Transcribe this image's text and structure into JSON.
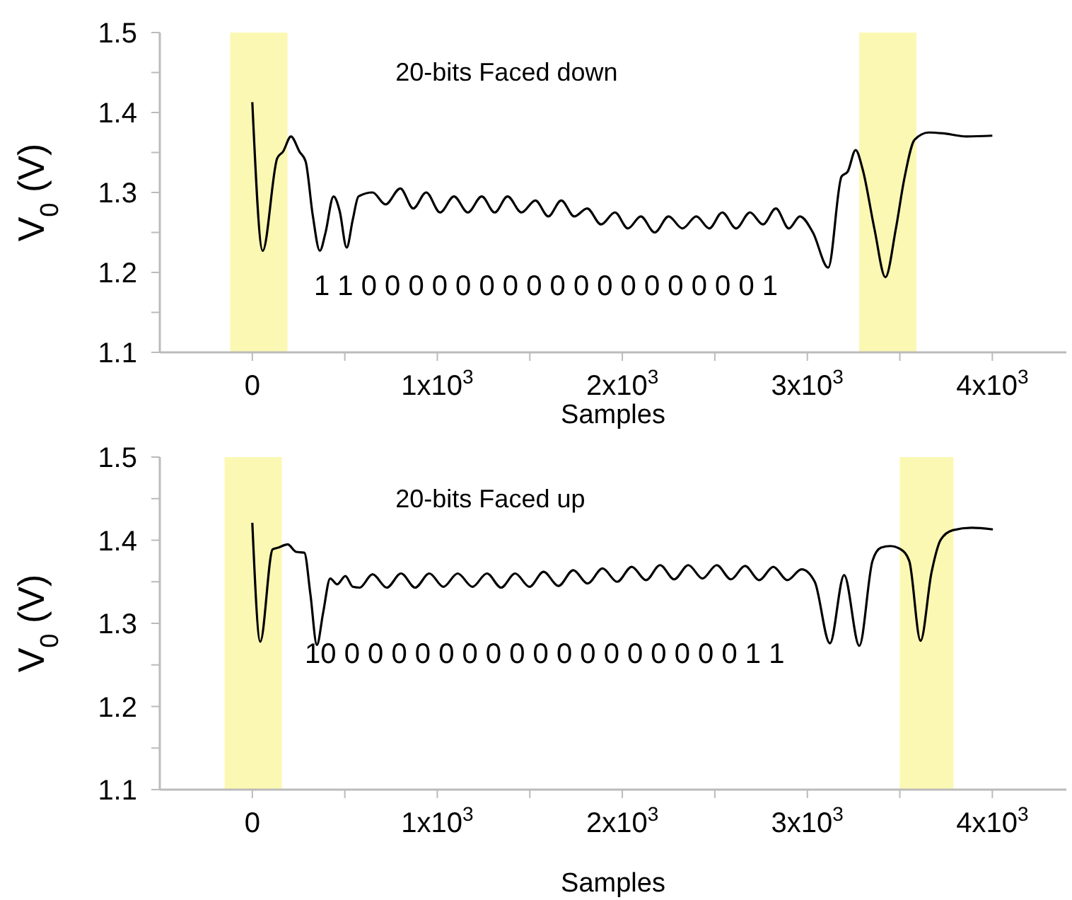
{
  "chart_data": [
    {
      "type": "line",
      "xlabel": "Samples",
      "ylabel": "V$_{0}$ (V)",
      "xlim": [
        -500,
        4400
      ],
      "ylim": [
        1.1,
        1.5
      ],
      "xticks": [
        {
          "value": 0,
          "label": "0"
        },
        {
          "value": 500,
          "label": null
        },
        {
          "value": 1000,
          "label": "1x10$^{3}$"
        },
        {
          "value": 1500,
          "label": null
        },
        {
          "value": 2000,
          "label": "2x10$^{3}$"
        },
        {
          "value": 2500,
          "label": null
        },
        {
          "value": 3000,
          "label": "3x10$^{3}$"
        },
        {
          "value": 3500,
          "label": null
        },
        {
          "value": 4000,
          "label": "4x10$^{3}$"
        }
      ],
      "yticks": [
        1.1,
        {
          "value": 1.15,
          "label": null
        },
        1.2,
        {
          "value": 1.25,
          "label": null
        },
        1.3,
        {
          "value": 1.35,
          "label": null
        },
        1.4,
        {
          "value": 1.45,
          "label": null
        },
        1.5
      ],
      "bands": [
        {
          "axis": "x",
          "from": -120,
          "to": 190,
          "color": "#fbf8b4"
        },
        {
          "axis": "x",
          "from": 3280,
          "to": 3590,
          "color": "#fbf8b4"
        }
      ],
      "annotations": [
        "20-bits Faced down",
        "1 1 0 0 0 0 0 0 0 0 0 0 0 0 0 0 0 0 0 1"
      ],
      "series": [
        {
          "color": "#000000",
          "x": [
            0,
            56,
            135,
            166,
            209,
            255,
            288,
            327,
            365,
            395,
            439,
            472,
            510,
            543,
            574,
            650,
            720,
            800,
            870,
            940,
            1015,
            1090,
            1165,
            1240,
            1310,
            1380,
            1455,
            1530,
            1600,
            1670,
            1740,
            1810,
            1885,
            1960,
            2030,
            2100,
            2175,
            2250,
            2325,
            2400,
            2470,
            2540,
            2615,
            2690,
            2760,
            2830,
            2900,
            2960,
            3030,
            3113,
            3185,
            3218,
            3261,
            3299,
            3363,
            3422,
            3478,
            3524,
            3580,
            3656,
            3732,
            3860,
            4000
          ],
          "values": [
            1.413,
            1.227,
            1.343,
            1.351,
            1.37,
            1.351,
            1.339,
            1.271,
            1.227,
            1.249,
            1.295,
            1.277,
            1.231,
            1.266,
            1.295,
            1.3,
            1.285,
            1.305,
            1.28,
            1.3,
            1.275,
            1.295,
            1.275,
            1.295,
            1.275,
            1.295,
            1.275,
            1.29,
            1.27,
            1.29,
            1.27,
            1.28,
            1.26,
            1.275,
            1.255,
            1.27,
            1.25,
            1.27,
            1.255,
            1.27,
            1.255,
            1.275,
            1.255,
            1.275,
            1.26,
            1.28,
            1.255,
            1.27,
            1.25,
            1.206,
            1.32,
            1.326,
            1.353,
            1.329,
            1.254,
            1.194,
            1.254,
            1.317,
            1.366,
            1.375,
            1.374,
            1.37,
            1.371
          ]
        }
      ]
    },
    {
      "type": "line",
      "xlabel": "Samples",
      "ylabel": "V$_{0}$ (V)",
      "xlim": [
        -500,
        4400
      ],
      "ylim": [
        1.1,
        1.5
      ],
      "xticks": [
        {
          "value": 0,
          "label": "0"
        },
        {
          "value": 500,
          "label": null
        },
        {
          "value": 1000,
          "label": "1x10$^{3}$"
        },
        {
          "value": 1500,
          "label": null
        },
        {
          "value": 2000,
          "label": "2x10$^{3}$"
        },
        {
          "value": 2500,
          "label": null
        },
        {
          "value": 3000,
          "label": "3x10$^{3}$"
        },
        {
          "value": 3500,
          "label": null
        },
        {
          "value": 4000,
          "label": "4x10$^{3}$"
        }
      ],
      "yticks": [
        1.1,
        {
          "value": 1.15,
          "label": null
        },
        1.2,
        {
          "value": 1.25,
          "label": null
        },
        1.3,
        {
          "value": 1.35,
          "label": null
        },
        1.4,
        {
          "value": 1.45,
          "label": null
        },
        1.5
      ],
      "bands": [
        {
          "axis": "x",
          "from": -150,
          "to": 160,
          "color": "#fbf8b4"
        },
        {
          "axis": "x",
          "from": 3500,
          "to": 3790,
          "color": "#fbf8b4"
        }
      ],
      "annotations": [
        "20-bits Faced up",
        "10 0 0 0 0 0 0 0 0 0 0 0 0 0 0 0 0 0 1 1"
      ],
      "series": [
        {
          "color": "#000000",
          "x": [
            0,
            43,
            110,
            140,
            191,
            237,
            281,
            314,
            349,
            383,
            421,
            459,
            503,
            543,
            580,
            650,
            727,
            804,
            880,
            957,
            1033,
            1110,
            1190,
            1268,
            1345,
            1421,
            1498,
            1574,
            1655,
            1735,
            1812,
            1893,
            1972,
            2051,
            2128,
            2204,
            2280,
            2357,
            2433,
            2510,
            2587,
            2663,
            2740,
            2816,
            2892,
            2969,
            3040,
            3122,
            3199,
            3281,
            3352,
            3398,
            3449,
            3505,
            3551,
            3612,
            3671,
            3722,
            3786,
            3888,
            4003
          ],
          "values": [
            1.421,
            1.278,
            1.389,
            1.391,
            1.395,
            1.386,
            1.385,
            1.335,
            1.274,
            1.313,
            1.354,
            1.347,
            1.357,
            1.344,
            1.343,
            1.359,
            1.343,
            1.36,
            1.343,
            1.36,
            1.344,
            1.36,
            1.344,
            1.36,
            1.343,
            1.36,
            1.344,
            1.362,
            1.345,
            1.364,
            1.348,
            1.366,
            1.35,
            1.368,
            1.352,
            1.37,
            1.353,
            1.37,
            1.354,
            1.37,
            1.353,
            1.369,
            1.352,
            1.368,
            1.352,
            1.365,
            1.35,
            1.276,
            1.358,
            1.273,
            1.375,
            1.391,
            1.393,
            1.389,
            1.375,
            1.279,
            1.361,
            1.401,
            1.412,
            1.415,
            1.413
          ]
        }
      ]
    }
  ]
}
